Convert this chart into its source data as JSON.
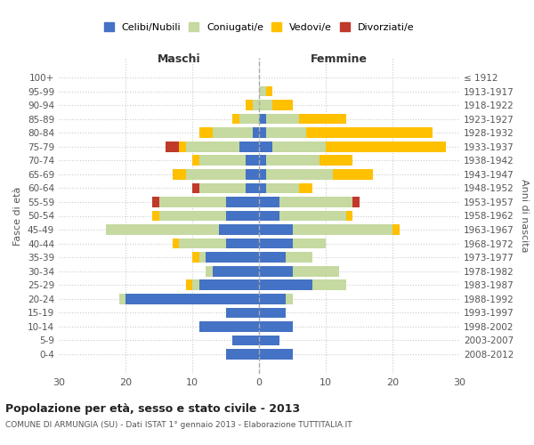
{
  "age_groups": [
    "0-4",
    "5-9",
    "10-14",
    "15-19",
    "20-24",
    "25-29",
    "30-34",
    "35-39",
    "40-44",
    "45-49",
    "50-54",
    "55-59",
    "60-64",
    "65-69",
    "70-74",
    "75-79",
    "80-84",
    "85-89",
    "90-94",
    "95-99",
    "100+"
  ],
  "birth_years": [
    "2008-2012",
    "2003-2007",
    "1998-2002",
    "1993-1997",
    "1988-1992",
    "1983-1987",
    "1978-1982",
    "1973-1977",
    "1968-1972",
    "1963-1967",
    "1958-1962",
    "1953-1957",
    "1948-1952",
    "1943-1947",
    "1938-1942",
    "1933-1937",
    "1928-1932",
    "1923-1927",
    "1918-1922",
    "1913-1917",
    "≤ 1912"
  ],
  "maschi": {
    "celibi": [
      5,
      4,
      9,
      5,
      20,
      9,
      7,
      8,
      5,
      6,
      5,
      5,
      2,
      2,
      2,
      3,
      1,
      0,
      0,
      0,
      0
    ],
    "coniugati": [
      0,
      0,
      0,
      0,
      1,
      1,
      1,
      1,
      7,
      17,
      10,
      10,
      7,
      9,
      7,
      8,
      6,
      3,
      1,
      0,
      0
    ],
    "vedovi": [
      0,
      0,
      0,
      0,
      0,
      1,
      0,
      1,
      1,
      0,
      1,
      0,
      0,
      2,
      1,
      1,
      2,
      1,
      1,
      0,
      0
    ],
    "divorziati": [
      0,
      0,
      0,
      0,
      0,
      0,
      0,
      0,
      0,
      0,
      0,
      1,
      1,
      0,
      0,
      2,
      0,
      0,
      0,
      0,
      0
    ]
  },
  "femmine": {
    "nubili": [
      5,
      3,
      5,
      4,
      4,
      8,
      5,
      4,
      5,
      5,
      3,
      3,
      1,
      1,
      1,
      2,
      1,
      1,
      0,
      0,
      0
    ],
    "coniugate": [
      0,
      0,
      0,
      0,
      1,
      5,
      7,
      4,
      5,
      15,
      10,
      11,
      5,
      10,
      8,
      8,
      6,
      5,
      2,
      1,
      0
    ],
    "vedove": [
      0,
      0,
      0,
      0,
      0,
      0,
      0,
      0,
      0,
      1,
      1,
      0,
      2,
      6,
      5,
      18,
      19,
      7,
      3,
      1,
      0
    ],
    "divorziate": [
      0,
      0,
      0,
      0,
      0,
      0,
      0,
      0,
      0,
      0,
      0,
      1,
      0,
      0,
      0,
      0,
      0,
      0,
      0,
      0,
      0
    ]
  },
  "colors": {
    "celibi": "#4472c4",
    "coniugati": "#c5d9a0",
    "vedovi": "#ffc000",
    "divorziati": "#c0392b"
  },
  "xlim": 30,
  "title": "Popolazione per età, sesso e stato civile - 2013",
  "subtitle": "COMUNE DI ARMUNGIA (SU) - Dati ISTAT 1° gennaio 2013 - Elaborazione TUTTITALIA.IT",
  "ylabel_left": "Fasce di età",
  "ylabel_right": "Anni di nascita",
  "xlabel_maschi": "Maschi",
  "xlabel_femmine": "Femmine",
  "legend_labels": [
    "Celibi/Nubili",
    "Coniugati/e",
    "Vedovi/e",
    "Divorziati/e"
  ]
}
